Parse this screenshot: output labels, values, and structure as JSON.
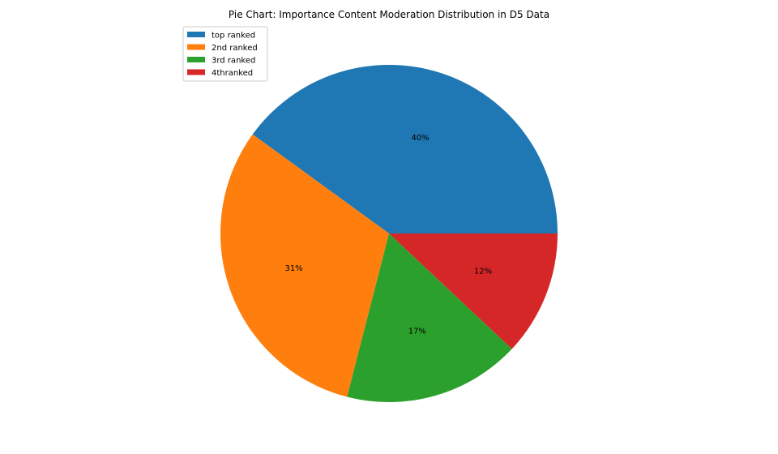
{
  "chart_data": {
    "type": "pie",
    "title": "Pie Chart: Importance Content Moderation Distribution in D5 Data",
    "categories": [
      "top ranked",
      "2nd ranked",
      "3rd ranked",
      "4thranked"
    ],
    "values": [
      40,
      31,
      17,
      12
    ],
    "labels": [
      "40%",
      "31%",
      "17%",
      "12%"
    ],
    "colors": [
      "#1f77b4",
      "#ff7f0e",
      "#2ca02c",
      "#d62728"
    ],
    "start_angle_deg": 0,
    "direction": "counterclockwise",
    "legend_position": "upper-left"
  }
}
